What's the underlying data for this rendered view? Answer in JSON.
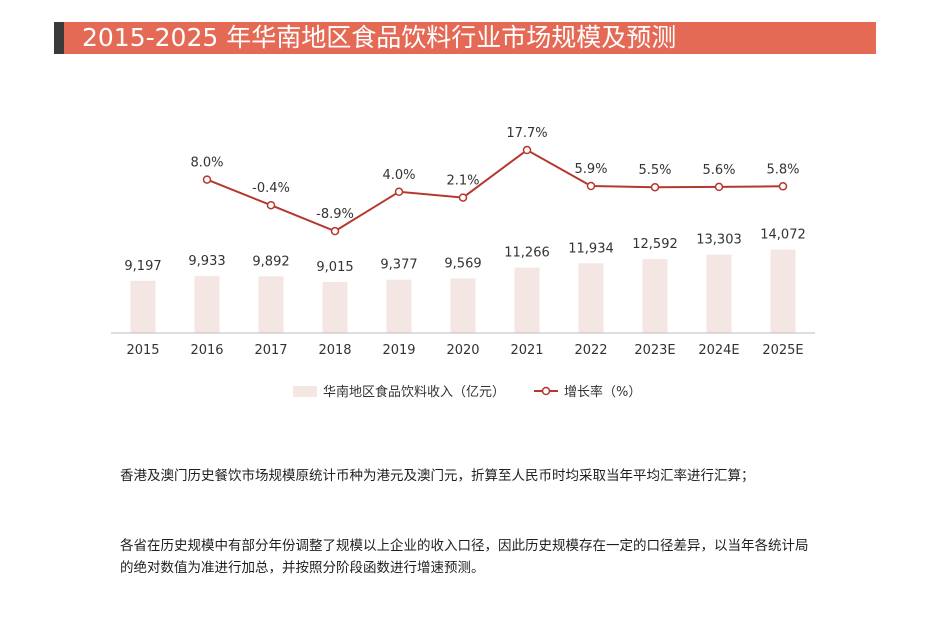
{
  "title": "2015-2025 年华南地区食品饮料行业市场规模及预测",
  "colors": {
    "title_bg": "#E46A55",
    "title_accent": "#3A3A3A",
    "bar": "#F3E6E3",
    "line": "#B5382E",
    "axis": "#BDBDBD"
  },
  "chart_data": {
    "type": "bar+line",
    "categories": [
      "2015",
      "2016",
      "2017",
      "2018",
      "2019",
      "2020",
      "2021",
      "2022",
      "2023E",
      "2024E",
      "2025E"
    ],
    "series": [
      {
        "name": "华南地区食品饮料收入（亿元）",
        "type": "bar",
        "values": [
          9197,
          9933,
          9892,
          9015,
          9377,
          9569,
          11266,
          11934,
          12592,
          13303,
          14072
        ],
        "labels": [
          "9,197",
          "9,933",
          "9,892",
          "9,015",
          "9,377",
          "9,569",
          "11,266",
          "11,934",
          "12,592",
          "13,303",
          "14,072"
        ]
      },
      {
        "name": "增长率（%）",
        "type": "line",
        "values": [
          null,
          8.0,
          -0.4,
          -8.9,
          4.0,
          2.1,
          17.7,
          5.9,
          5.5,
          5.6,
          5.8
        ],
        "labels": [
          "",
          "8.0%",
          "-0.4%",
          "-8.9%",
          "4.0%",
          "2.1%",
          "17.7%",
          "5.9%",
          "5.5%",
          "5.6%",
          "5.8%"
        ]
      }
    ],
    "legend": {
      "position": "bottom"
    }
  },
  "notes": [
    "香港及澳门历史餐饮市场规模原统计币种为港元及澳门元，折算至人民币时均采取当年平均汇率进行汇算；",
    "各省在历史规模中有部分年份调整了规模以上企业的收入口径，因此历史规模存在一定的口径差异，以当年各统计局的绝对数值为准进行加总，并按照分阶段函数进行增速预测。"
  ]
}
